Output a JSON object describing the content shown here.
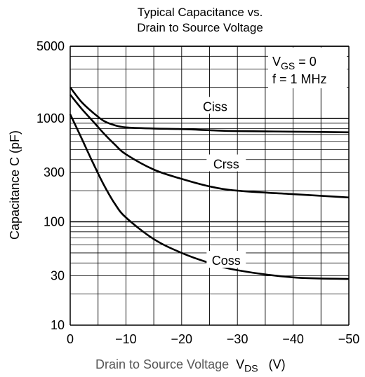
{
  "chart_data": {
    "type": "line",
    "title_line1": "Typical Capacitance vs.",
    "title_line2": "Drain to Source Voltage",
    "xlabel": "Drain to Source Voltage",
    "xlabel_symbol": "V",
    "xlabel_subscript": "DS",
    "xlabel_unit": "(V)",
    "ylabel": "Capacitance  C  (pF)",
    "yscale": "log",
    "ylim": [
      10,
      5000
    ],
    "xlim": [
      0,
      -50
    ],
    "x_ticks": [
      "0",
      "−10",
      "−20",
      "−30",
      "−40",
      "−50"
    ],
    "y_ticks": [
      "10",
      "30",
      "100",
      "300",
      "1000",
      "5000"
    ],
    "grid": true,
    "conditions": {
      "vgs_prefix": "V",
      "vgs_sub": "GS",
      "vgs_rest": " = 0",
      "freq": "f = 1 MHz"
    },
    "series": [
      {
        "name": "Ciss",
        "points": [
          [
            0,
            2000
          ],
          [
            -2,
            1450
          ],
          [
            -4,
            1150
          ],
          [
            -6,
            950
          ],
          [
            -8,
            860
          ],
          [
            -10,
            820
          ],
          [
            -15,
            800
          ],
          [
            -20,
            790
          ],
          [
            -25,
            770
          ],
          [
            -30,
            755
          ],
          [
            -40,
            745
          ],
          [
            -50,
            735
          ]
        ]
      },
      {
        "name": "Crss",
        "points": [
          [
            0,
            1700
          ],
          [
            -2,
            1250
          ],
          [
            -4,
            950
          ],
          [
            -6,
            720
          ],
          [
            -8,
            560
          ],
          [
            -10,
            450
          ],
          [
            -15,
            320
          ],
          [
            -20,
            260
          ],
          [
            -25,
            220
          ],
          [
            -30,
            200
          ],
          [
            -40,
            185
          ],
          [
            -50,
            172
          ]
        ]
      },
      {
        "name": "Coss",
        "points": [
          [
            0,
            1100
          ],
          [
            -2,
            650
          ],
          [
            -4,
            380
          ],
          [
            -6,
            230
          ],
          [
            -8,
            150
          ],
          [
            -10,
            110
          ],
          [
            -15,
            68
          ],
          [
            -20,
            50
          ],
          [
            -25,
            40
          ],
          [
            -30,
            34
          ],
          [
            -40,
            29
          ],
          [
            -50,
            28
          ]
        ]
      }
    ],
    "labels": [
      {
        "text": "Ciss",
        "x": -26,
        "y": 1300
      },
      {
        "text": "Crss",
        "x": -28,
        "y": 360
      },
      {
        "text": "Coss",
        "x": -28,
        "y": 42
      }
    ]
  }
}
